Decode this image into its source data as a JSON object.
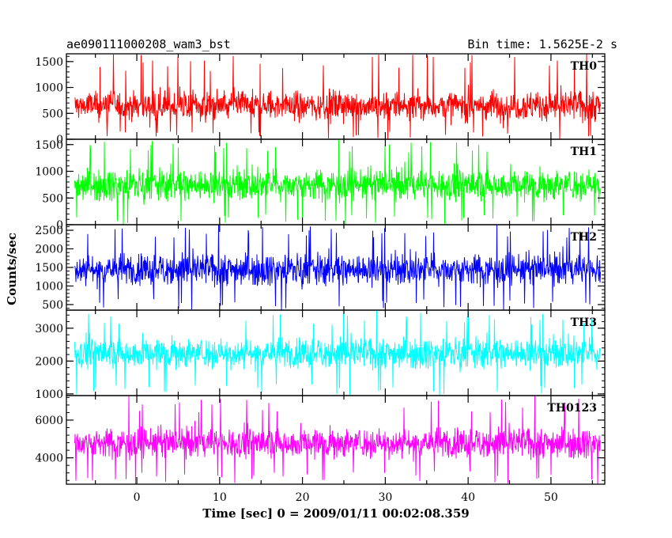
{
  "header": {
    "left_title": "ae090111000208_wam3_bst",
    "right_title": "Bin time: 1.5625E-2 s"
  },
  "chart_data": {
    "type": "line",
    "xlabel": "Time [sec] 0 = 2009/01/11 00:02:08.359",
    "ylabel": "Counts/sec",
    "x_range": [
      -8.5,
      56.5
    ],
    "x_ticks": [
      0,
      10,
      20,
      30,
      40,
      50
    ],
    "data_x_range": [
      -7.5,
      56
    ],
    "panels": [
      {
        "name": "TH0",
        "color": "#ff0000",
        "ylim": [
          0,
          1650
        ],
        "y_ticks": [
          0,
          500,
          1000,
          1500
        ],
        "series_summary": {
          "center": 650,
          "low_envelope": 150,
          "high_envelope": 1300,
          "spike_min": 0,
          "spike_max": 1650
        }
      },
      {
        "name": "TH1",
        "color": "#00ff00",
        "ylim": [
          0,
          1600
        ],
        "y_ticks": [
          0,
          500,
          1000,
          1500
        ],
        "series_summary": {
          "center": 750,
          "low_envelope": 200,
          "high_envelope": 1350,
          "spike_min": 0,
          "spike_max": 1600
        }
      },
      {
        "name": "TH2",
        "color": "#0000ff",
        "ylim": [
          350,
          2650
        ],
        "y_ticks": [
          500,
          1000,
          1500,
          2000,
          2500
        ],
        "series_summary": {
          "center": 1450,
          "low_envelope": 650,
          "high_envelope": 2300,
          "spike_min": 350,
          "spike_max": 2650
        }
      },
      {
        "name": "TH3",
        "color": "#00ffff",
        "ylim": [
          950,
          3550
        ],
        "y_ticks": [
          1000,
          2000,
          3000
        ],
        "series_summary": {
          "center": 2250,
          "low_envelope": 1300,
          "high_envelope": 3100,
          "spike_min": 950,
          "spike_max": 3550
        }
      },
      {
        "name": "TH0123",
        "color": "#ff00ff",
        "ylim": [
          2600,
          7300
        ],
        "y_ticks": [
          4000,
          6000
        ],
        "series_summary": {
          "center": 4800,
          "low_envelope": 3300,
          "high_envelope": 6400,
          "spike_min": 2600,
          "spike_max": 7300
        }
      }
    ]
  }
}
